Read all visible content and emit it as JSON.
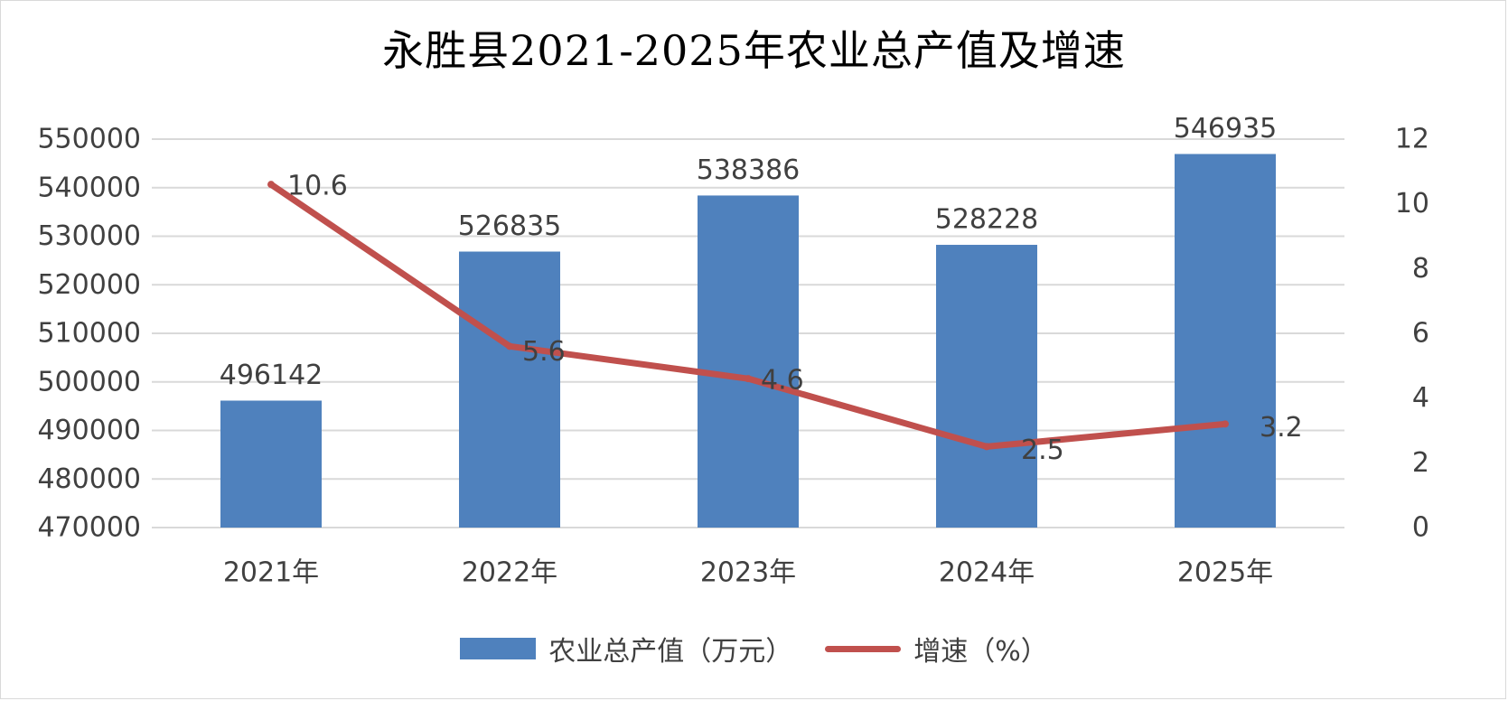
{
  "chart_data": {
    "type": "bar",
    "title": "永胜县2021-2025年农业总产值及增速",
    "categories": [
      "2021年",
      "2022年",
      "2023年",
      "2024年",
      "2025年"
    ],
    "series": [
      {
        "name": "农业总产值（万元）",
        "type": "bar",
        "axis": "left",
        "values": [
          496142,
          526835,
          538386,
          528228,
          546935
        ],
        "labels": [
          "496142",
          "526835",
          "538386",
          "528228",
          "546935"
        ]
      },
      {
        "name": "增速（%）",
        "type": "line",
        "axis": "right",
        "values": [
          10.6,
          5.6,
          4.6,
          2.5,
          3.2
        ],
        "labels": [
          "10.6",
          "5.6",
          "4.6",
          "2.5",
          "3.2"
        ]
      }
    ],
    "y_left": {
      "ylim": [
        470000,
        550000
      ],
      "ticks": [
        "470000",
        "480000",
        "490000",
        "500000",
        "510000",
        "520000",
        "530000",
        "540000",
        "550000"
      ]
    },
    "y_right": {
      "ylim": [
        0,
        12
      ],
      "ticks": [
        "0",
        "2",
        "4",
        "6",
        "8",
        "10",
        "12"
      ]
    },
    "xlabel": "",
    "ylabel": "",
    "grid": "horizontal",
    "legend_position": "bottom",
    "colors": {
      "bar": "#4f81bd",
      "line": "#c0504d",
      "grid": "#d9d9d9",
      "text": "#404040"
    }
  }
}
